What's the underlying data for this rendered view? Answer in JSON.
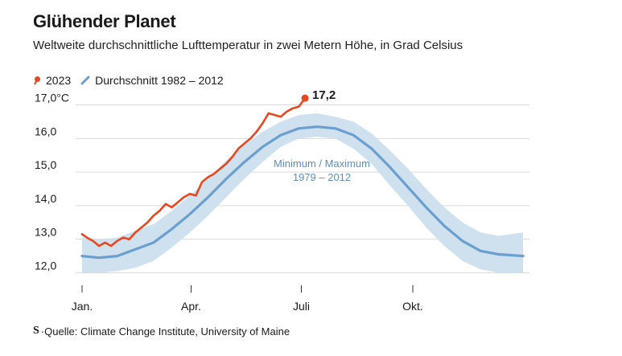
{
  "header": {
    "title": "Glühender Planet",
    "subtitle": "Weltweite durchschnittliche Lufttemperatur in zwei Metern Höhe, in Grad Celsius"
  },
  "source": {
    "logo": "S",
    "text": "Quelle: Climate Change Institute, University of Maine"
  },
  "colors": {
    "series_2023": "#e8461e",
    "average": "#6b9fd0",
    "band": "#cfe0ee",
    "grid": "#d9d9d9"
  },
  "chart_data": {
    "type": "line",
    "x_unit": "day_of_year",
    "xlim": [
      1,
      365
    ],
    "ylim": [
      11.7,
      17.3
    ],
    "yticks": [
      {
        "value": 12.0,
        "label": "12,0"
      },
      {
        "value": 13.0,
        "label": "13,0"
      },
      {
        "value": 14.0,
        "label": "14,0"
      },
      {
        "value": 15.0,
        "label": "15,0"
      },
      {
        "value": 16.0,
        "label": "16,0"
      },
      {
        "value": 17.0,
        "label": "17,0°C"
      }
    ],
    "xticks": [
      {
        "value": 1,
        "label": "Jan."
      },
      {
        "value": 91,
        "label": "Apr."
      },
      {
        "value": 182,
        "label": "Juli"
      },
      {
        "value": 274,
        "label": "Okt."
      }
    ],
    "series": [
      {
        "name": "2023",
        "color": "#e8461e",
        "x": [
          1,
          5,
          10,
          15,
          20,
          25,
          30,
          35,
          40,
          45,
          50,
          55,
          60,
          65,
          70,
          75,
          80,
          85,
          90,
          95,
          100,
          105,
          110,
          115,
          120,
          125,
          130,
          135,
          140,
          145,
          150,
          155,
          160,
          165,
          170,
          175,
          180,
          182,
          183,
          184,
          185
        ],
        "y": [
          13.15,
          13.05,
          12.95,
          12.8,
          12.9,
          12.8,
          12.95,
          13.05,
          13.0,
          13.2,
          13.35,
          13.5,
          13.7,
          13.85,
          14.05,
          13.95,
          14.1,
          14.25,
          14.35,
          14.3,
          14.7,
          14.85,
          14.95,
          15.1,
          15.25,
          15.45,
          15.7,
          15.85,
          16.0,
          16.2,
          16.45,
          16.75,
          16.7,
          16.65,
          16.8,
          16.9,
          16.95,
          17.05,
          17.1,
          17.15,
          17.2
        ]
      },
      {
        "name": "Durchschnitt 1982 – 2012",
        "color": "#6b9fd0",
        "x": [
          1,
          15,
          30,
          45,
          60,
          75,
          90,
          105,
          120,
          135,
          150,
          165,
          180,
          195,
          210,
          225,
          240,
          255,
          270,
          285,
          300,
          315,
          330,
          345,
          365
        ],
        "y": [
          12.5,
          12.45,
          12.5,
          12.7,
          12.9,
          13.3,
          13.75,
          14.25,
          14.8,
          15.3,
          15.75,
          16.1,
          16.3,
          16.35,
          16.3,
          16.1,
          15.7,
          15.15,
          14.55,
          13.95,
          13.4,
          12.95,
          12.65,
          12.55,
          12.5
        ]
      }
    ],
    "band": {
      "name": "Minimum / Maximum 1979 – 2012",
      "label_line1": "Minimum / Maximum",
      "label_line2": "1979 – 2012",
      "x": [
        1,
        15,
        30,
        45,
        60,
        75,
        90,
        105,
        120,
        135,
        150,
        165,
        180,
        195,
        210,
        225,
        240,
        255,
        270,
        285,
        300,
        315,
        330,
        345,
        365
      ],
      "lower": [
        12.0,
        12.0,
        12.05,
        12.15,
        12.35,
        12.75,
        13.2,
        13.7,
        14.25,
        14.8,
        15.3,
        15.75,
        16.0,
        16.05,
        16.0,
        15.7,
        15.25,
        14.6,
        14.0,
        13.35,
        12.8,
        12.35,
        12.1,
        12.0,
        12.0
      ],
      "upper": [
        13.05,
        13.0,
        13.05,
        13.25,
        13.45,
        13.85,
        14.3,
        14.8,
        15.35,
        15.8,
        16.2,
        16.5,
        16.7,
        16.75,
        16.65,
        16.5,
        16.15,
        15.65,
        15.1,
        14.5,
        13.95,
        13.5,
        13.2,
        13.1,
        13.2
      ]
    },
    "end_label": "17,2",
    "grid": true,
    "legend_placement": "top-left"
  }
}
